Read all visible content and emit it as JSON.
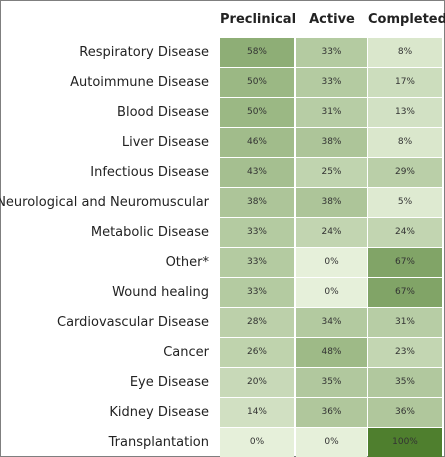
{
  "chart_data": {
    "type": "heatmap",
    "columns": [
      "Preclinical",
      "Active",
      "Completed"
    ],
    "rows": [
      {
        "label": "Respiratory Disease",
        "values": [
          58,
          33,
          8
        ]
      },
      {
        "label": "Autoimmune Disease",
        "values": [
          50,
          33,
          17
        ]
      },
      {
        "label": "Blood Disease",
        "values": [
          50,
          31,
          13
        ]
      },
      {
        "label": "Liver Disease",
        "values": [
          46,
          38,
          8
        ]
      },
      {
        "label": "Infectious Disease",
        "values": [
          43,
          25,
          29
        ]
      },
      {
        "label": "Neurological and Neuromuscular",
        "values": [
          38,
          38,
          5
        ]
      },
      {
        "label": "Metabolic Disease",
        "values": [
          33,
          24,
          24
        ]
      },
      {
        "label": "Other*",
        "values": [
          33,
          0,
          67
        ]
      },
      {
        "label": "Wound healing",
        "values": [
          33,
          0,
          67
        ]
      },
      {
        "label": "Cardiovascular Disease",
        "values": [
          28,
          34,
          31
        ]
      },
      {
        "label": "Cancer",
        "values": [
          26,
          48,
          23
        ]
      },
      {
        "label": "Eye Disease",
        "values": [
          20,
          35,
          35
        ]
      },
      {
        "label": "Kidney Disease",
        "values": [
          14,
          36,
          36
        ]
      },
      {
        "label": "Transplantation",
        "values": [
          0,
          0,
          100
        ]
      }
    ],
    "value_suffix": "%",
    "color_low": "#e6f0da",
    "color_high": "#4f7f2e"
  }
}
